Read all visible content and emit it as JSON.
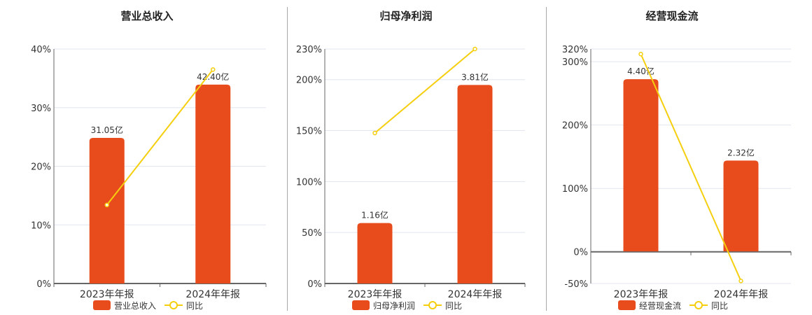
{
  "colors": {
    "bar": "#e84c1c",
    "line": "#f5cf0f",
    "grid": "#e1e5f0",
    "axis": "#666",
    "text": "#333"
  },
  "chart_data": [
    {
      "type": "bar+line",
      "title": "营业总收入",
      "categories": [
        "2023年年报",
        "2024年年报"
      ],
      "bar_series": {
        "name": "营业总收入",
        "values": [
          31.05,
          42.4
        ],
        "labels": [
          "31.05亿",
          "42.40亿"
        ],
        "axis_range": [
          0,
          50
        ]
      },
      "line_series": {
        "name": "同比",
        "values": [
          13.4,
          36.5
        ]
      },
      "yticks": [
        0,
        10,
        20,
        30,
        40
      ],
      "ytick_labels": [
        "0%",
        "10%",
        "20%",
        "30%",
        "40%"
      ],
      "ylim": [
        0,
        40
      ],
      "grid": true,
      "legend": "bottom"
    },
    {
      "type": "bar+line",
      "title": "归母净利润",
      "categories": [
        "2023年年报",
        "2024年年报"
      ],
      "bar_series": {
        "name": "归母净利润",
        "values": [
          1.16,
          3.81
        ],
        "labels": [
          "1.16亿",
          "3.81亿"
        ],
        "axis_range": [
          0,
          4.5
        ]
      },
      "line_series": {
        "name": "同比",
        "values": [
          147.6,
          230
        ]
      },
      "yticks": [
        0,
        50,
        100,
        150,
        200,
        230
      ],
      "ytick_labels": [
        "0%",
        "50%",
        "100%",
        "150%",
        "200%",
        "230%"
      ],
      "ylim": [
        0,
        230
      ],
      "grid": true,
      "legend": "bottom"
    },
    {
      "type": "bar+line",
      "title": "经营现金流",
      "categories": [
        "2023年年报",
        "2024年年报"
      ],
      "bar_series": {
        "name": "经营现金流",
        "values": [
          4.4,
          2.32
        ],
        "labels": [
          "4.40亿",
          "2.32亿"
        ],
        "axis_range": [
          -0.82,
          5.17
        ]
      },
      "line_series": {
        "name": "同比",
        "values": [
          312,
          -46
        ]
      },
      "yticks": [
        -50,
        0,
        100,
        200,
        300,
        320
      ],
      "ytick_labels": [
        "-50%",
        "0%",
        "100%",
        "200%",
        "300%",
        "320%"
      ],
      "ylim": [
        -50,
        320
      ],
      "grid": true,
      "legend": "bottom"
    }
  ]
}
